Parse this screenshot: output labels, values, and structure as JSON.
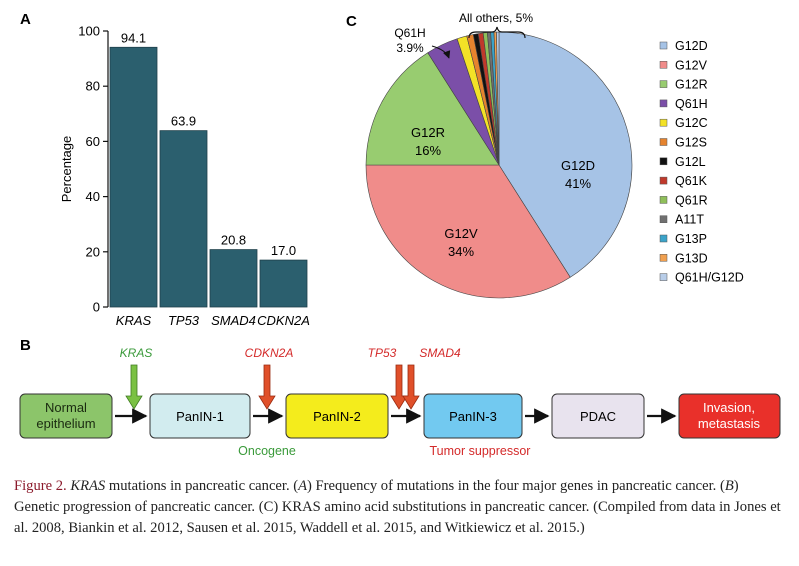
{
  "panel_a": {
    "label": "A",
    "chart_data": {
      "type": "bar",
      "categories": [
        "KRAS",
        "TP53",
        "SMAD4",
        "CDKN2A"
      ],
      "values": [
        94.1,
        63.9,
        20.8,
        17.0
      ],
      "value_labels": [
        "94.1",
        "63.9",
        "20.8",
        "17.0"
      ],
      "ylabel": "Percentage",
      "ylim": [
        0,
        100
      ],
      "yticks": [
        0,
        20,
        40,
        60,
        80,
        100
      ],
      "colors": {
        "bar": "#2b5f6e",
        "bar_edge": "#1e3f4a"
      }
    }
  },
  "panel_c": {
    "label": "C",
    "chart_data": {
      "type": "pie",
      "labels": [
        "G12D",
        "G12V",
        "G12R",
        "Q61H",
        "G12C",
        "G12S",
        "G12L",
        "Q61K",
        "Q61R",
        "A11T",
        "G13P",
        "G13D",
        "Q61H/G12D"
      ],
      "values": [
        41,
        34,
        16,
        3.9,
        1.2,
        0.8,
        0.6,
        0.6,
        0.5,
        0.4,
        0.4,
        0.3,
        0.3
      ],
      "colors": [
        "#a6c3e6",
        "#f08c8a",
        "#98cc70",
        "#7b4fa8",
        "#f3e227",
        "#e5832e",
        "#111111",
        "#c0392b",
        "#8fbf5a",
        "#707070",
        "#3ba3c9",
        "#f0a050",
        "#b8cde8"
      ],
      "slice_labels": [
        {
          "name": "G12D",
          "pct": "41%"
        },
        {
          "name": "G12V",
          "pct": "34%"
        },
        {
          "name": "G12R",
          "pct": "16%"
        }
      ],
      "q61h_callout": {
        "name": "Q61H",
        "pct": "3.9%"
      },
      "others_callout": "All others, 5%",
      "legend": [
        "G12D",
        "G12V",
        "G12R",
        "Q61H",
        "G12C",
        "G12S",
        "G12L",
        "Q61K",
        "Q61R",
        "A11T",
        "G13P",
        "G13D",
        "Q61H/G12D"
      ]
    }
  },
  "panel_b": {
    "label": "B",
    "stages": [
      {
        "line1": "Normal",
        "line2": "epithelium",
        "fill": "#8cc56a",
        "text": "#1a2a10"
      },
      {
        "line1": "PanIN-1",
        "line2": "",
        "fill": "#d2ecef",
        "text": "#1a1a1a"
      },
      {
        "line1": "PanIN-2",
        "line2": "",
        "fill": "#f4ec1c",
        "text": "#1a1a1a"
      },
      {
        "line1": "PanIN-3",
        "line2": "",
        "fill": "#72c9f0",
        "text": "#1a1a1a"
      },
      {
        "line1": "PDAC",
        "line2": "",
        "fill": "#e8e3ee",
        "text": "#1a1a1a"
      },
      {
        "line1": "Invasion,",
        "line2": "metastasis",
        "fill": "#e9302a",
        "text": "#ffffff"
      }
    ],
    "gene_markers": [
      {
        "name": "KRAS",
        "color": "#3a9a3a"
      },
      {
        "name": "CDKN2A",
        "color": "#d42a2a"
      },
      {
        "name": "TP53",
        "color": "#d42a2a"
      },
      {
        "name": "SMAD4",
        "color": "#d42a2a"
      }
    ],
    "oncogene_label": "Oncogene",
    "tumor_suppressor_label": "Tumor suppressor",
    "colors": {
      "oncogene": "#3a9a3a",
      "suppressor": "#d42a2a",
      "arrow_green": "#7ac143",
      "arrow_red": "#e0502a"
    }
  },
  "caption": {
    "figure_label": "Figure 2.",
    "gene": "KRAS",
    "title_rest": " mutations in pancreatic cancer. (",
    "a_letter": "A",
    "a_text": ") Frequency of mutations in the four major genes in pancreatic cancer. (",
    "b_letter": "B",
    "b_text": ") Genetic progression of pancreatic cancer. (C) KRAS amino acid substitutions in pancreatic cancer. (Compiled from data in Jones et al. 2008, Biankin et al. 2012, Sausen et al. 2015, Waddell et al. 2015, and Witkiewicz et al. 2015.)"
  }
}
